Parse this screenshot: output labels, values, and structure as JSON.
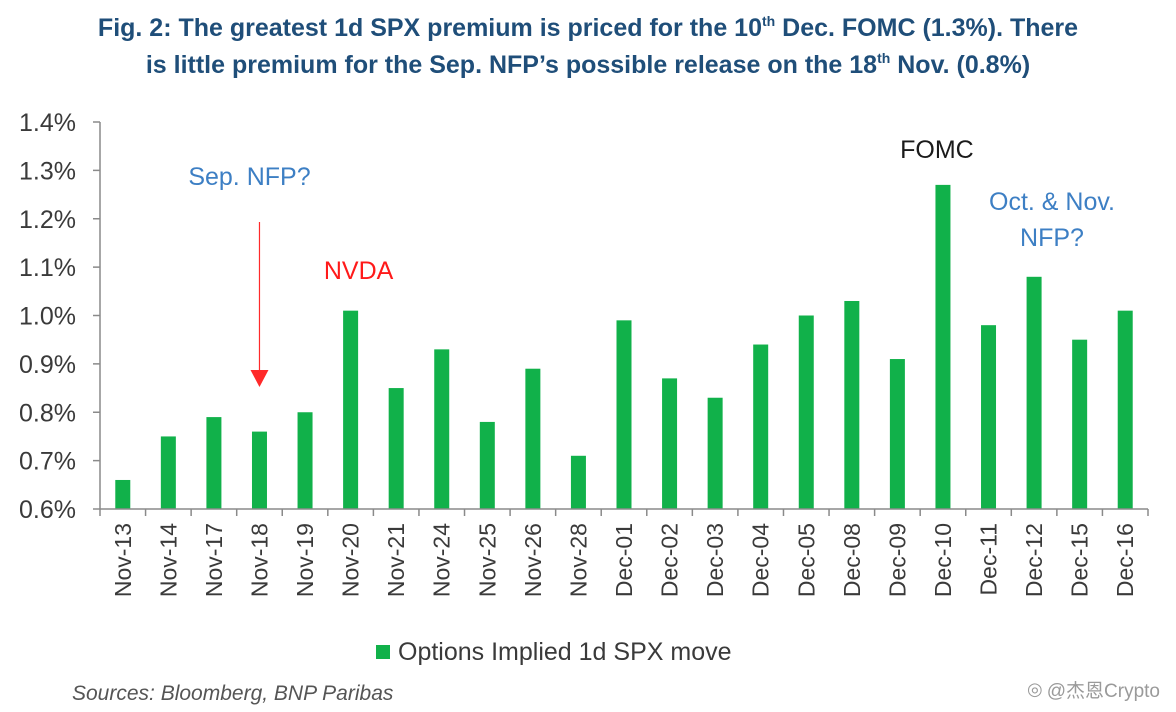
{
  "title": {
    "line1_a": "Fig. 2: The greatest 1d SPX premium is priced for the 10",
    "line1_sup": "th",
    "line1_b": " Dec. FOMC (1.3%). There",
    "line2_a": "is little premium for the Sep. NFP’s possible release on the 18",
    "line2_sup": "th",
    "line2_b": " Nov. (0.8%)"
  },
  "chart_data": {
    "type": "bar",
    "categories": [
      "Nov-13",
      "Nov-14",
      "Nov-17",
      "Nov-18",
      "Nov-19",
      "Nov-20",
      "Nov-21",
      "Nov-24",
      "Nov-25",
      "Nov-26",
      "Nov-28",
      "Dec-01",
      "Dec-02",
      "Dec-03",
      "Dec-04",
      "Dec-05",
      "Dec-08",
      "Dec-09",
      "Dec-10",
      "Dec-11",
      "Dec-12",
      "Dec-15",
      "Dec-16"
    ],
    "series": [
      {
        "name": "Options Implied 1d SPX move",
        "values": [
          0.66,
          0.75,
          0.79,
          0.76,
          0.8,
          1.01,
          0.85,
          0.93,
          0.78,
          0.89,
          0.71,
          0.99,
          0.87,
          0.83,
          0.94,
          1.0,
          1.03,
          0.91,
          1.27,
          0.98,
          1.08,
          0.95,
          1.01
        ]
      }
    ],
    "ylim": [
      0.6,
      1.4
    ],
    "yticks": [
      0.6,
      0.7,
      0.8,
      0.9,
      1.0,
      1.1,
      1.2,
      1.3,
      1.4
    ],
    "ytick_labels": [
      "0.6%",
      "0.7%",
      "0.8%",
      "0.9%",
      "1.0%",
      "1.1%",
      "1.2%",
      "1.3%",
      "1.4%"
    ],
    "xlabel": "",
    "ylabel": "",
    "annotations": [
      {
        "text": "Sep. NFP?",
        "category": "Nov-18",
        "color": "#3d7fc4"
      },
      {
        "text": "NVDA",
        "category": "Nov-20",
        "color": "#ff1a1a"
      },
      {
        "text": "FOMC",
        "category": "Dec-10",
        "color": "#1a1a1a"
      },
      {
        "text": "Oct. & Nov. NFP?",
        "category": "Dec-12",
        "color": "#3d7fc4"
      }
    ]
  },
  "legend": {
    "label": "Options Implied 1d SPX move"
  },
  "sources": "Sources: Bloomberg, BNP Paribas",
  "watermark": "@杰恩Crypto",
  "colors": {
    "bar": "#11b14a",
    "arrow": "#ff2a2a",
    "axis": "#8a8a8a"
  }
}
